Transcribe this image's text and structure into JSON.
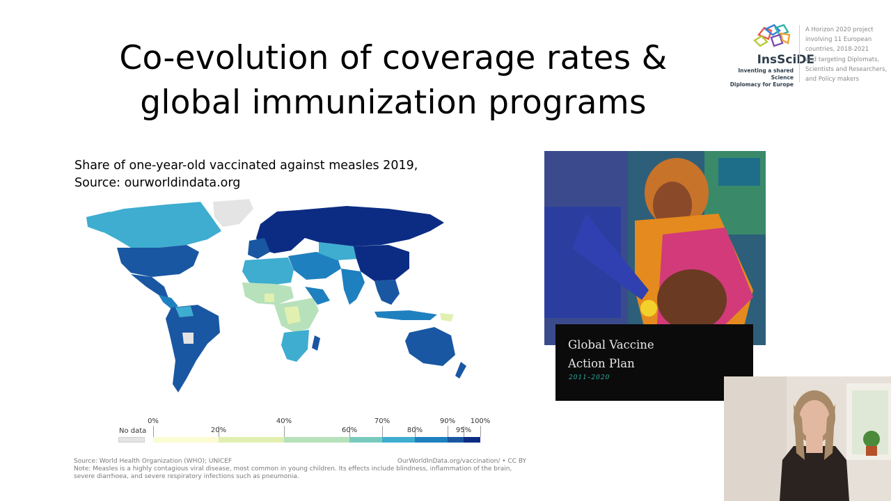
{
  "slide": {
    "title_line1": "Co-evolution of coverage rates &",
    "title_line2": "global immunization programs"
  },
  "logo": {
    "name": "InsSciDE",
    "tagline_line1": "Inventing a shared Science",
    "tagline_line2": "Diplomacy for Europe"
  },
  "project_note": {
    "lines": [
      "A Horizon 2020 project",
      "involving 11 European",
      "countries, 2018-2021",
      "and targeting Diplomats,",
      "Scientists and Researchers,",
      "and Policy makers"
    ]
  },
  "map_caption": {
    "line1": "Share of one-year-old vaccinated against measles 2019,",
    "line2": "Source: ourworldindata.org"
  },
  "legend": {
    "no_data": "No data",
    "ticks_top": [
      "0%",
      "40%",
      "70%",
      "90%",
      "100%"
    ],
    "ticks_bottom": [
      "20%",
      "60%",
      "80%",
      "95%"
    ],
    "colors": [
      "#fbfbd4",
      "#e1f0b0",
      "#b7e1ba",
      "#78cabd",
      "#3eadd0",
      "#1f80bf",
      "#1957a3",
      "#0c2c84"
    ],
    "no_data_color": "#e4e4e4"
  },
  "source": {
    "left": "Source: World Health Organization (WHO); UNICEF",
    "right": "OurWorldInData.org/vaccination/ • CC BY",
    "note_line1": "Note: Measles is a highly contagious viral disease, most common in young children. Its effects include blindness, inflammation of the brain,",
    "note_line2": "severe diarrhoea, and severe respiratory infections such as pneumonia."
  },
  "poster": {
    "title_line1": "Global Vaccine",
    "title_line2": "Action Plan",
    "years": "2011–2020"
  }
}
